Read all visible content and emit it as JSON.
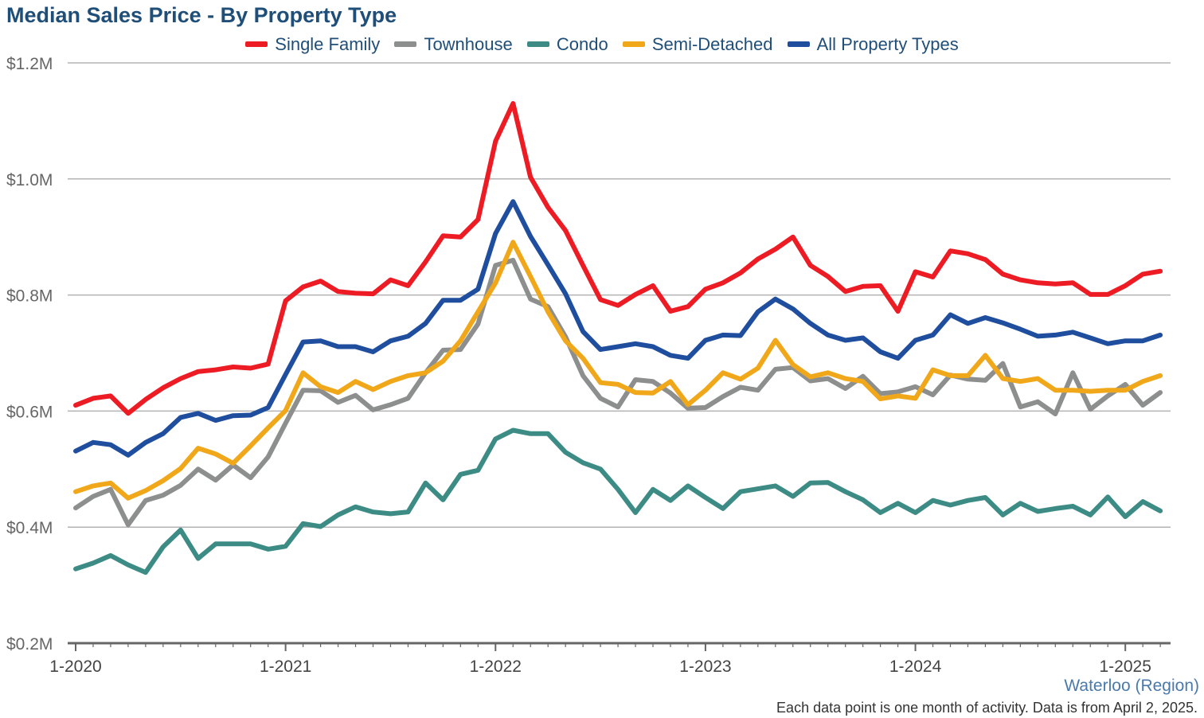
{
  "chart_data": {
    "type": "line",
    "title": "Median Sales Price - By Property Type",
    "x_start": "2020-01",
    "y_ticks": [
      "$0.2M",
      "$0.4M",
      "$0.6M",
      "$0.8M",
      "$1.0M",
      "$1.2M"
    ],
    "y_tick_values": [
      0.2,
      0.4,
      0.6,
      0.8,
      1.0,
      1.2
    ],
    "ylim": [
      0.2,
      1.2
    ],
    "x_ticks": [
      "1-2020",
      "1-2021",
      "1-2022",
      "1-2023",
      "1-2024",
      "1-2025"
    ],
    "grid": "horizontal",
    "legend_position": "top-center",
    "series": [
      {
        "name": "Single Family",
        "color": "#ed1c24",
        "values": [
          0.61,
          0.622,
          0.626,
          0.596,
          0.62,
          0.64,
          0.656,
          0.668,
          0.671,
          0.676,
          0.674,
          0.681,
          0.79,
          0.814,
          0.824,
          0.806,
          0.803,
          0.802,
          0.826,
          0.816,
          0.857,
          0.902,
          0.9,
          0.93,
          1.065,
          1.13,
          1.003,
          0.951,
          0.911,
          0.851,
          0.792,
          0.782,
          0.801,
          0.816,
          0.772,
          0.78,
          0.81,
          0.821,
          0.838,
          0.862,
          0.879,
          0.9,
          0.851,
          0.832,
          0.806,
          0.815,
          0.816,
          0.772,
          0.84,
          0.831,
          0.876,
          0.871,
          0.861,
          0.836,
          0.826,
          0.821,
          0.819,
          0.821,
          0.801,
          0.801,
          0.816,
          0.836,
          0.841
        ]
      },
      {
        "name": "Townhouse",
        "color": "#8c8f8e",
        "values": [
          0.433,
          0.453,
          0.465,
          0.404,
          0.446,
          0.455,
          0.472,
          0.5,
          0.481,
          0.507,
          0.485,
          0.521,
          0.579,
          0.636,
          0.635,
          0.615,
          0.627,
          0.602,
          0.611,
          0.622,
          0.666,
          0.705,
          0.706,
          0.75,
          0.851,
          0.86,
          0.793,
          0.78,
          0.728,
          0.661,
          0.622,
          0.607,
          0.654,
          0.651,
          0.631,
          0.605,
          0.606,
          0.625,
          0.641,
          0.636,
          0.672,
          0.675,
          0.652,
          0.656,
          0.639,
          0.66,
          0.63,
          0.633,
          0.642,
          0.628,
          0.662,
          0.655,
          0.653,
          0.682,
          0.607,
          0.616,
          0.595,
          0.666,
          0.603,
          0.626,
          0.646,
          0.61,
          0.632
        ]
      },
      {
        "name": "Condo",
        "color": "#3c8c85",
        "values": [
          0.328,
          0.338,
          0.351,
          0.335,
          0.322,
          0.366,
          0.395,
          0.346,
          0.371,
          0.371,
          0.371,
          0.362,
          0.367,
          0.406,
          0.401,
          0.421,
          0.435,
          0.426,
          0.423,
          0.426,
          0.476,
          0.447,
          0.491,
          0.498,
          0.552,
          0.567,
          0.561,
          0.561,
          0.529,
          0.511,
          0.5,
          0.465,
          0.425,
          0.465,
          0.446,
          0.471,
          0.451,
          0.432,
          0.461,
          0.466,
          0.471,
          0.453,
          0.476,
          0.477,
          0.461,
          0.447,
          0.425,
          0.441,
          0.425,
          0.446,
          0.438,
          0.446,
          0.451,
          0.421,
          0.441,
          0.427,
          0.432,
          0.436,
          0.421,
          0.452,
          0.418,
          0.444,
          0.428
        ]
      },
      {
        "name": "Semi-Detached",
        "color": "#f0a81a",
        "values": [
          0.461,
          0.471,
          0.476,
          0.45,
          0.463,
          0.48,
          0.501,
          0.536,
          0.526,
          0.51,
          0.54,
          0.571,
          0.601,
          0.666,
          0.642,
          0.632,
          0.651,
          0.637,
          0.651,
          0.661,
          0.666,
          0.686,
          0.721,
          0.771,
          0.821,
          0.891,
          0.832,
          0.771,
          0.721,
          0.691,
          0.649,
          0.646,
          0.632,
          0.631,
          0.651,
          0.611,
          0.636,
          0.666,
          0.655,
          0.674,
          0.722,
          0.68,
          0.659,
          0.666,
          0.656,
          0.651,
          0.621,
          0.626,
          0.622,
          0.671,
          0.661,
          0.661,
          0.696,
          0.656,
          0.651,
          0.656,
          0.636,
          0.636,
          0.634,
          0.636,
          0.636,
          0.651,
          0.661
        ]
      },
      {
        "name": "All Property Types",
        "color": "#1f4e9e",
        "values": [
          0.531,
          0.546,
          0.542,
          0.524,
          0.546,
          0.561,
          0.589,
          0.596,
          0.584,
          0.592,
          0.593,
          0.606,
          0.663,
          0.719,
          0.721,
          0.711,
          0.711,
          0.702,
          0.721,
          0.729,
          0.751,
          0.791,
          0.791,
          0.81,
          0.906,
          0.961,
          0.901,
          0.852,
          0.802,
          0.737,
          0.706,
          0.711,
          0.716,
          0.711,
          0.696,
          0.691,
          0.722,
          0.731,
          0.73,
          0.771,
          0.793,
          0.776,
          0.751,
          0.731,
          0.722,
          0.726,
          0.702,
          0.691,
          0.722,
          0.731,
          0.766,
          0.751,
          0.761,
          0.752,
          0.741,
          0.729,
          0.731,
          0.736,
          0.726,
          0.716,
          0.721,
          0.721,
          0.731
        ]
      }
    ],
    "region_label": "Waterloo (Region)",
    "footnote": "Each data point is one month of activity. Data is from April 2, 2025."
  }
}
